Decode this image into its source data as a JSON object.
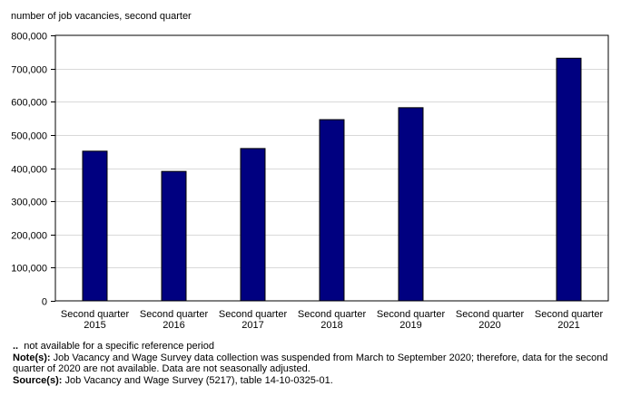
{
  "chart_data": {
    "type": "bar",
    "ylabel": "number of job vacancies, second quarter",
    "categories": [
      [
        "Second quarter",
        "2015"
      ],
      [
        "Second quarter",
        "2016"
      ],
      [
        "Second quarter",
        "2017"
      ],
      [
        "Second quarter",
        "2018"
      ],
      [
        "Second quarter",
        "2019"
      ],
      [
        "Second quarter",
        "2020"
      ],
      [
        "Second quarter",
        "2021"
      ]
    ],
    "values": [
      451000,
      390000,
      459000,
      546000,
      582000,
      null,
      731000
    ],
    "ylim": [
      0,
      800000
    ],
    "yticks": [
      0,
      100000,
      200000,
      300000,
      400000,
      500000,
      600000,
      700000,
      800000
    ],
    "ytick_labels": [
      "0",
      "100,000",
      "200,000",
      "300,000",
      "400,000",
      "500,000",
      "600,000",
      "700,000",
      "800,000"
    ],
    "grid": true,
    "bar_color": "#000080",
    "legend": null
  },
  "notes": {
    "na_symbol": "..",
    "na_text": "not available for a specific reference period",
    "note_label": "Note(s):",
    "note_text": "Job Vacancy and Wage Survey data collection was suspended from March to September 2020; therefore, data for the second quarter of 2020 are not available. Data are not seasonally adjusted.",
    "source_label": "Source(s):",
    "source_text": "Job Vacancy and Wage Survey (5217), table 14-10-0325-01."
  }
}
